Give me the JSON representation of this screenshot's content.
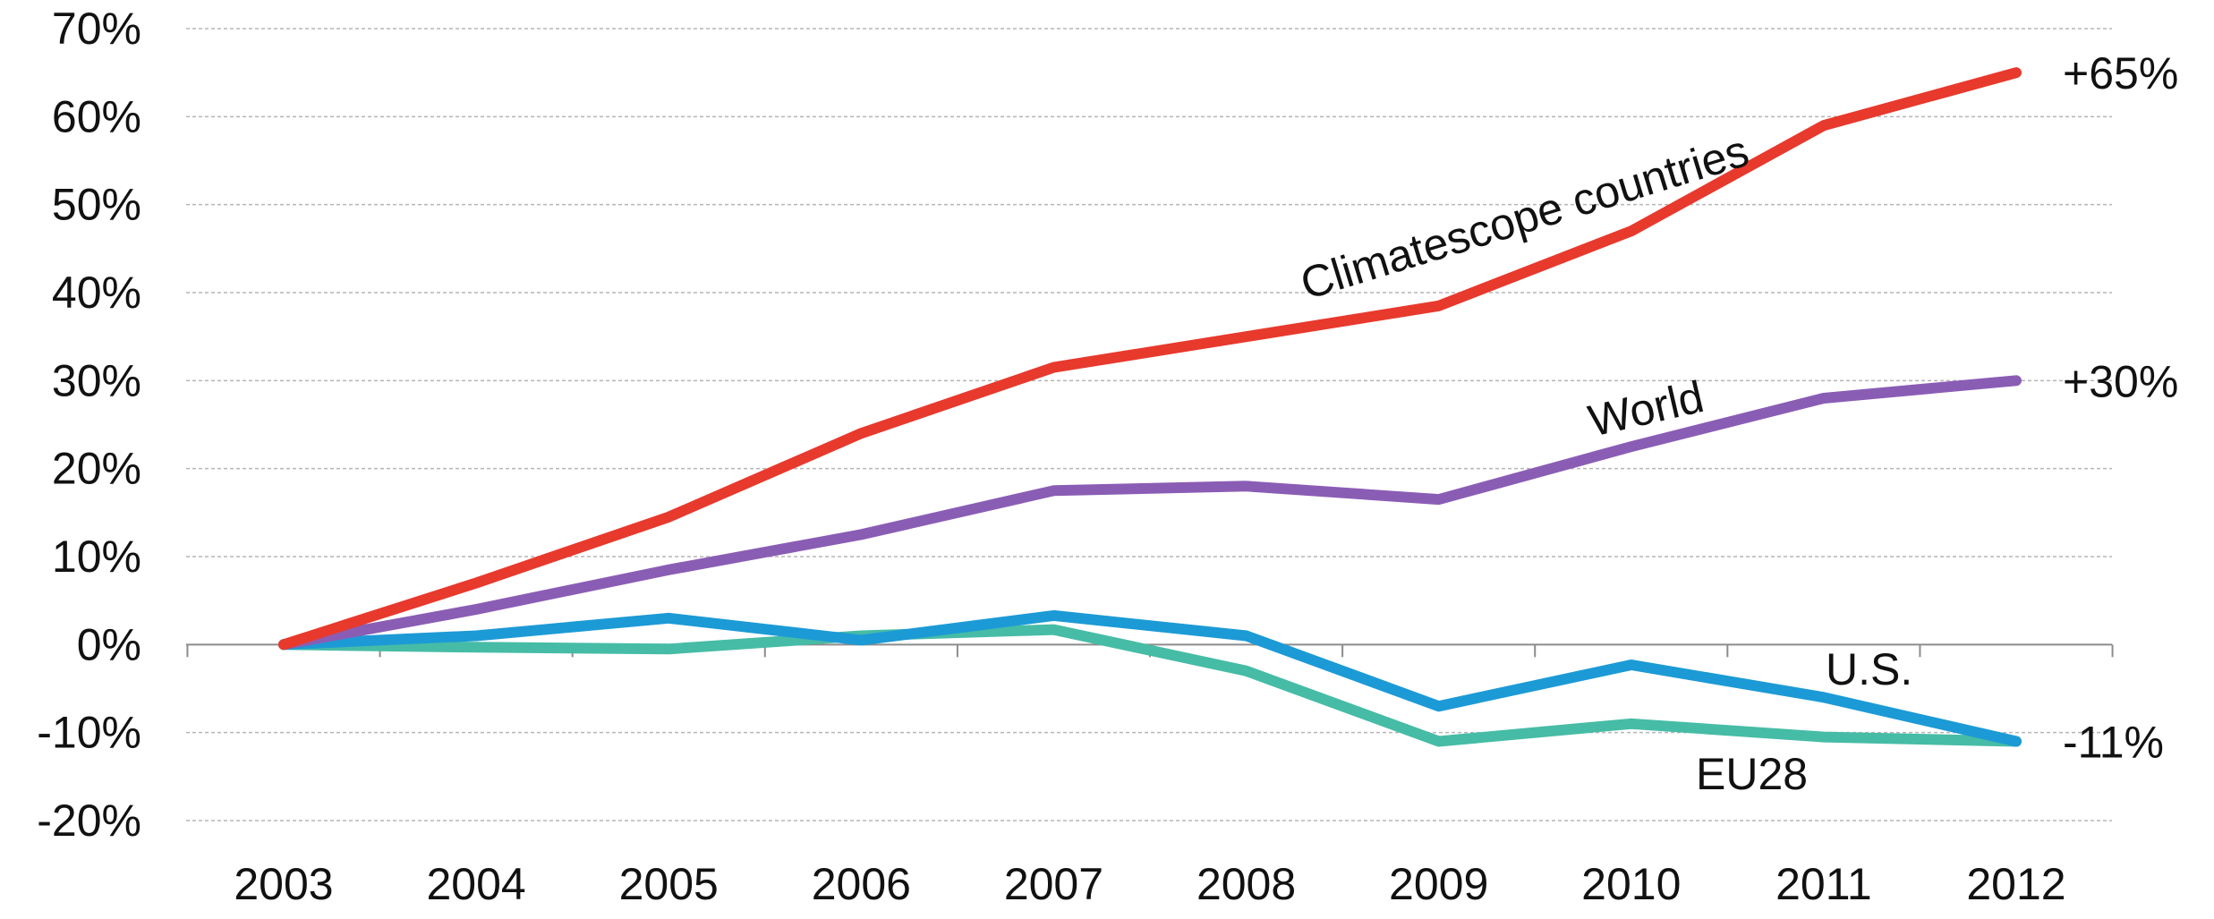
{
  "chart_data": {
    "type": "line",
    "title": "",
    "xlabel": "",
    "ylabel": "",
    "x": [
      "2003",
      "2004",
      "2005",
      "2006",
      "2007",
      "2008",
      "2009",
      "2010",
      "2011",
      "2012"
    ],
    "ylim": [
      -20,
      70
    ],
    "yticks": [
      70,
      60,
      50,
      40,
      30,
      20,
      10,
      0,
      -10,
      -20
    ],
    "ytick_labels": [
      "70%",
      "60%",
      "50%",
      "40%",
      "30%",
      "20%",
      "10%",
      "0%",
      "-10%",
      "-20%"
    ],
    "grid": "horizontal dashed",
    "legend": "none (series labeled inline)",
    "series": [
      {
        "name": "Climatescope countries",
        "color": "#e8392d",
        "values": [
          0,
          7,
          14.5,
          24,
          31.5,
          35,
          38.5,
          47,
          59,
          65
        ],
        "end_label": "+65%"
      },
      {
        "name": "World",
        "color": "#8a5db5",
        "values": [
          0,
          4,
          8.5,
          12.5,
          17.5,
          18,
          16.5,
          22.5,
          28,
          30
        ],
        "end_label": "+30%"
      },
      {
        "name": "U.S.",
        "color": "#1c9ad6",
        "values": [
          0,
          1,
          3,
          0.5,
          3.3,
          1,
          -7,
          -2.3,
          -6,
          -11
        ],
        "end_label": "-11%"
      },
      {
        "name": "EU28",
        "color": "#46bca6",
        "values": [
          0,
          -0.3,
          -0.5,
          1,
          1.7,
          -3,
          -11,
          -9,
          -10.5,
          -11
        ],
        "end_label": ""
      }
    ]
  }
}
